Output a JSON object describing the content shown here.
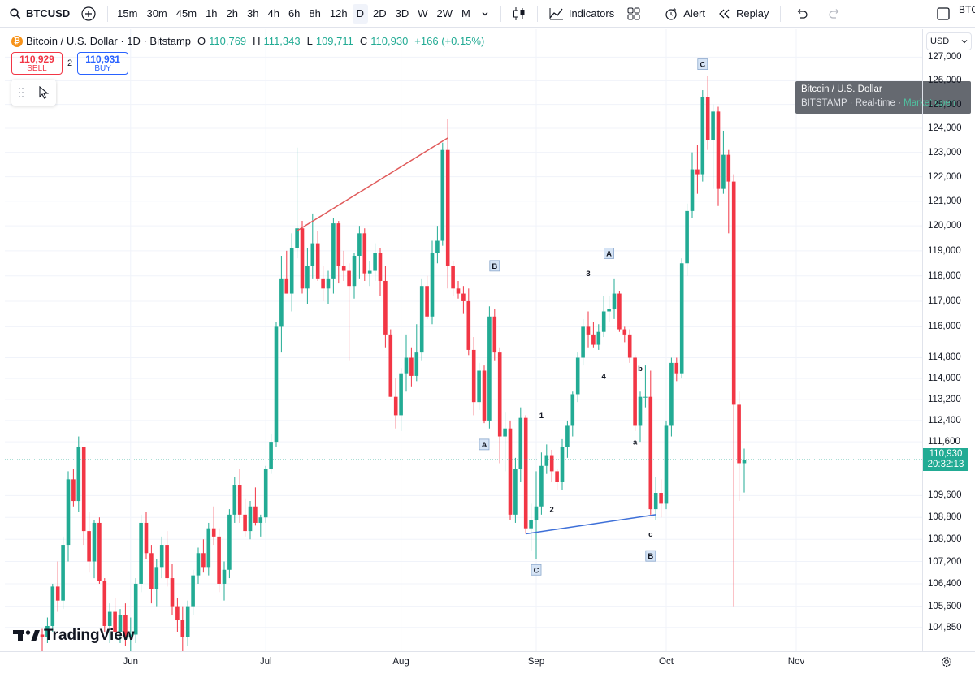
{
  "toolbar": {
    "symbol": "BTCUSD",
    "intervals": [
      "15m",
      "30m",
      "45m",
      "1h",
      "2h",
      "3h",
      "4h",
      "6h",
      "8h",
      "12h",
      "D",
      "2D",
      "3D",
      "W",
      "2W",
      "M"
    ],
    "active_interval": "D",
    "indicators_label": "Indicators",
    "alert_label": "Alert",
    "replay_label": "Replay",
    "corner_symbol": "BTC"
  },
  "legend": {
    "title": "Bitcoin / U.S. Dollar · 1D · Bitstamp",
    "o_label": "O",
    "o": "110,769",
    "h_label": "H",
    "h": "111,343",
    "l_label": "L",
    "l": "109,711",
    "c_label": "C",
    "c": "110,930",
    "change": "+166 (+0.15%)"
  },
  "trade": {
    "sell_price": "110,929",
    "sell_label": "SELL",
    "spread": "2",
    "buy_price": "110,931",
    "buy_label": "BUY"
  },
  "tooltip": {
    "title": "Bitcoin / U.S. Dollar",
    "exchange": "BITSTAMP",
    "realtime": "Real-time",
    "market_status": "Market open"
  },
  "price_axis": {
    "currency": "USD",
    "ticks": [
      "127,000",
      "126,000",
      "125,000",
      "124,000",
      "123,000",
      "122,000",
      "121,000",
      "120,000",
      "119,000",
      "118,000",
      "117,000",
      "116,000",
      "114,800",
      "114,000",
      "113,200",
      "112,400",
      "111,600",
      "109,600",
      "108,800",
      "108,000",
      "107,200",
      "106,400",
      "105,600",
      "104,850"
    ],
    "last_price": "110,930",
    "countdown": "20:32:13"
  },
  "time_axis": {
    "labels": [
      "Jun",
      "Jul",
      "Aug",
      "Sep",
      "Oct",
      "Nov"
    ]
  },
  "branding": {
    "logo_text": "TradingView"
  },
  "annotations": {
    "boxed": [
      "C",
      "B",
      "A",
      "A",
      "C",
      "B"
    ],
    "plain": [
      "3",
      "4",
      "1",
      "2",
      "b",
      "a",
      "c"
    ]
  },
  "colors": {
    "up": "#22ab94",
    "down": "#f23645",
    "trendline_red": "#e05a5a",
    "trendline_blue": "#3d6fd8"
  },
  "chart_data": {
    "type": "candlestick",
    "title": "",
    "y_scale": "log",
    "ylim": [
      104300,
      127500
    ],
    "x_start_label": "Jun",
    "candles": [
      [
        104600,
        104800,
        103900,
        104500
      ],
      [
        104500,
        105200,
        104300,
        104900
      ],
      [
        104900,
        106400,
        104700,
        106300
      ],
      [
        106300,
        107200,
        105400,
        105800
      ],
      [
        105800,
        108100,
        105500,
        107800
      ],
      [
        107800,
        110500,
        107200,
        110200
      ],
      [
        110200,
        110600,
        109200,
        109400
      ],
      [
        109400,
        111800,
        109000,
        111400
      ],
      [
        111400,
        111400,
        107800,
        108300
      ],
      [
        108300,
        109000,
        106800,
        107200
      ],
      [
        107200,
        108700,
        106600,
        108600
      ],
      [
        108600,
        108800,
        106400,
        106500
      ],
      [
        106500,
        106600,
        104700,
        104900
      ],
      [
        104900,
        105700,
        104300,
        105400
      ],
      [
        105400,
        105900,
        104500,
        104700
      ],
      [
        104700,
        105500,
        104300,
        105300
      ],
      [
        105300,
        105700,
        104200,
        104500
      ],
      [
        104500,
        105200,
        104000,
        104600
      ],
      [
        104600,
        106600,
        104300,
        106400
      ],
      [
        106400,
        108900,
        106100,
        108600
      ],
      [
        108600,
        109000,
        107300,
        107500
      ],
      [
        107500,
        107800,
        105700,
        106200
      ],
      [
        106200,
        107300,
        105600,
        107000
      ],
      [
        107000,
        108100,
        106600,
        107800
      ],
      [
        107800,
        108300,
        106300,
        106600
      ],
      [
        106600,
        107100,
        105300,
        105600
      ],
      [
        105600,
        105900,
        104700,
        105100
      ],
      [
        105100,
        105600,
        103800,
        104500
      ],
      [
        104500,
        105800,
        104200,
        105600
      ],
      [
        105600,
        106900,
        105300,
        106700
      ],
      [
        106700,
        107700,
        106400,
        107500
      ],
      [
        107500,
        108000,
        106800,
        107000
      ],
      [
        107000,
        108600,
        106700,
        108400
      ],
      [
        108400,
        109200,
        107800,
        108100
      ],
      [
        108100,
        108400,
        106100,
        106400
      ],
      [
        106400,
        107200,
        105800,
        106900
      ],
      [
        106900,
        109100,
        106600,
        108900
      ],
      [
        108900,
        110300,
        108600,
        110000
      ],
      [
        110000,
        110600,
        108600,
        108900
      ],
      [
        108900,
        109500,
        108100,
        108300
      ],
      [
        108300,
        109400,
        108000,
        109200
      ],
      [
        109200,
        109900,
        108500,
        108600
      ],
      [
        108600,
        108900,
        108100,
        108800
      ],
      [
        108800,
        110700,
        108600,
        110600
      ],
      [
        110600,
        111900,
        110400,
        111600
      ],
      [
        111600,
        116200,
        111400,
        116000
      ],
      [
        116000,
        118800,
        115000,
        117900
      ],
      [
        117900,
        119000,
        117300,
        117300
      ],
      [
        117300,
        119700,
        116600,
        119100
      ],
      [
        119100,
        123200,
        118700,
        119900
      ],
      [
        119900,
        120200,
        117300,
        117500
      ],
      [
        117500,
        119100,
        116900,
        118400
      ],
      [
        118400,
        120500,
        117900,
        119300
      ],
      [
        119300,
        119800,
        117800,
        117900
      ],
      [
        117900,
        118400,
        117000,
        117500
      ],
      [
        117500,
        118200,
        116900,
        117900
      ],
      [
        117900,
        120300,
        117300,
        120100
      ],
      [
        120100,
        120200,
        117700,
        118400
      ],
      [
        118400,
        119000,
        117800,
        118200
      ],
      [
        118200,
        118500,
        114700,
        117600
      ],
      [
        117600,
        118900,
        117100,
        118800
      ],
      [
        118800,
        120000,
        117900,
        119700
      ],
      [
        119700,
        119900,
        117800,
        118100
      ],
      [
        118100,
        118600,
        117600,
        118200
      ],
      [
        118200,
        119300,
        117800,
        118900
      ],
      [
        118900,
        119100,
        117200,
        117800
      ],
      [
        117800,
        118400,
        115200,
        115700
      ],
      [
        115700,
        115900,
        113300,
        113300
      ],
      [
        113300,
        114000,
        112100,
        112600
      ],
      [
        112600,
        114400,
        112000,
        114200
      ],
      [
        114200,
        115700,
        113500,
        114800
      ],
      [
        114800,
        115200,
        113700,
        114100
      ],
      [
        114100,
        116100,
        113900,
        115000
      ],
      [
        115000,
        117900,
        114700,
        117600
      ],
      [
        117600,
        118000,
        116300,
        116400
      ],
      [
        116400,
        119400,
        116100,
        118900
      ],
      [
        118900,
        120000,
        118500,
        119400
      ],
      [
        119400,
        123400,
        119200,
        123100
      ],
      [
        123100,
        124400,
        117500,
        118400
      ],
      [
        118400,
        118600,
        117200,
        117500
      ],
      [
        117500,
        117800,
        117100,
        117300
      ],
      [
        117300,
        117600,
        116500,
        117000
      ],
      [
        117000,
        117500,
        114900,
        115100
      ],
      [
        115100,
        115600,
        112600,
        113100
      ],
      [
        113100,
        114600,
        112800,
        114300
      ],
      [
        114300,
        114500,
        112300,
        112400
      ],
      [
        112400,
        116800,
        112100,
        116400
      ],
      [
        116400,
        116700,
        114700,
        115000
      ],
      [
        115000,
        115200,
        110800,
        111800
      ],
      [
        111800,
        112700,
        110500,
        112100
      ],
      [
        112100,
        112400,
        108700,
        108900
      ],
      [
        108900,
        111000,
        108600,
        110600
      ],
      [
        110600,
        112900,
        110100,
        112500
      ],
      [
        112500,
        112600,
        108200,
        108400
      ],
      [
        108400,
        109300,
        107600,
        108700
      ],
      [
        108700,
        110500,
        107300,
        109200
      ],
      [
        109200,
        111200,
        108900,
        110700
      ],
      [
        110700,
        111500,
        110400,
        111100
      ],
      [
        111100,
        111300,
        110100,
        110500
      ],
      [
        110500,
        110600,
        109800,
        110100
      ],
      [
        110100,
        111700,
        109800,
        111400
      ],
      [
        111400,
        112400,
        111000,
        112200
      ],
      [
        112200,
        113500,
        111800,
        113400
      ],
      [
        113400,
        115000,
        113100,
        114800
      ],
      [
        114800,
        116300,
        114500,
        116000
      ],
      [
        116000,
        116600,
        115200,
        115700
      ],
      [
        115700,
        116200,
        115200,
        115300
      ],
      [
        115300,
        116100,
        115100,
        115800
      ],
      [
        115800,
        117200,
        115600,
        116600
      ],
      [
        116600,
        117200,
        116200,
        116700
      ],
      [
        116700,
        117900,
        116300,
        117300
      ],
      [
        117300,
        117400,
        115800,
        115900
      ],
      [
        115900,
        116000,
        115400,
        115700
      ],
      [
        115700,
        115900,
        114600,
        114800
      ],
      [
        114800,
        114900,
        112000,
        112200
      ],
      [
        112200,
        113500,
        111600,
        113300
      ],
      [
        113300,
        114500,
        112900,
        113300
      ],
      [
        113300,
        114300,
        108900,
        109100
      ],
      [
        109100,
        110300,
        108700,
        109700
      ],
      [
        109700,
        110200,
        108800,
        109300
      ],
      [
        109300,
        112400,
        109100,
        112200
      ],
      [
        112200,
        114800,
        111800,
        114600
      ],
      [
        114600,
        114800,
        113900,
        114200
      ],
      [
        114200,
        118700,
        114000,
        118500
      ],
      [
        118500,
        120900,
        118000,
        120600
      ],
      [
        120600,
        123000,
        120300,
        122300
      ],
      [
        122300,
        123300,
        121300,
        122100
      ],
      [
        122100,
        125600,
        121800,
        125300
      ],
      [
        125300,
        126200,
        123100,
        123500
      ],
      [
        123500,
        125000,
        121500,
        124700
      ],
      [
        124700,
        124900,
        120800,
        121500
      ],
      [
        121500,
        123900,
        121300,
        122900
      ],
      [
        122900,
        123100,
        119700,
        121800
      ],
      [
        121800,
        122100,
        105600,
        113000
      ],
      [
        113000,
        113500,
        109400,
        110800
      ],
      [
        110800,
        111343,
        109711,
        110930
      ]
    ],
    "price_ticks": [
      127000,
      126000,
      125000,
      124000,
      123000,
      122000,
      121000,
      120000,
      119000,
      118000,
      117000,
      116000,
      114800,
      114000,
      113200,
      112400,
      111600,
      109600,
      108800,
      108000,
      107200,
      106400,
      105600,
      104850
    ],
    "trendlines": [
      {
        "color": "red",
        "from_candle": 49,
        "from_price": 119800,
        "to_candle": 78,
        "to_price": 123600
      },
      {
        "color": "blue",
        "from_candle": 93,
        "from_price": 108200,
        "to_candle": 118,
        "to_price": 108900
      }
    ],
    "annotations": [
      {
        "text": "C",
        "boxed": true,
        "candle": 127,
        "price": 126700
      },
      {
        "text": "B",
        "boxed": true,
        "candle": 87,
        "price": 118400
      },
      {
        "text": "A",
        "boxed": true,
        "candle": 109,
        "price": 118900
      },
      {
        "text": "3",
        "boxed": false,
        "candle": 105,
        "price": 118100
      },
      {
        "text": "4",
        "boxed": false,
        "candle": 108,
        "price": 114100
      },
      {
        "text": "b",
        "boxed": false,
        "candle": 115,
        "price": 114400
      },
      {
        "text": "1",
        "boxed": false,
        "candle": 96,
        "price": 112600
      },
      {
        "text": "A",
        "boxed": true,
        "candle": 85,
        "price": 111500
      },
      {
        "text": "a",
        "boxed": false,
        "candle": 114,
        "price": 111600
      },
      {
        "text": "2",
        "boxed": false,
        "candle": 98,
        "price": 109100
      },
      {
        "text": "c",
        "boxed": false,
        "candle": 117,
        "price": 108200
      },
      {
        "text": "B",
        "boxed": true,
        "candle": 117,
        "price": 107400
      },
      {
        "text": "C",
        "boxed": true,
        "candle": 95,
        "price": 106900
      }
    ],
    "time_labels": [
      {
        "label": "Jun",
        "candle": 17
      },
      {
        "label": "Jul",
        "candle": 43
      },
      {
        "label": "Aug",
        "candle": 69
      },
      {
        "label": "Sep",
        "candle": 95
      },
      {
        "label": "Oct",
        "candle": 120
      },
      {
        "label": "Nov",
        "candle": 145
      }
    ]
  }
}
